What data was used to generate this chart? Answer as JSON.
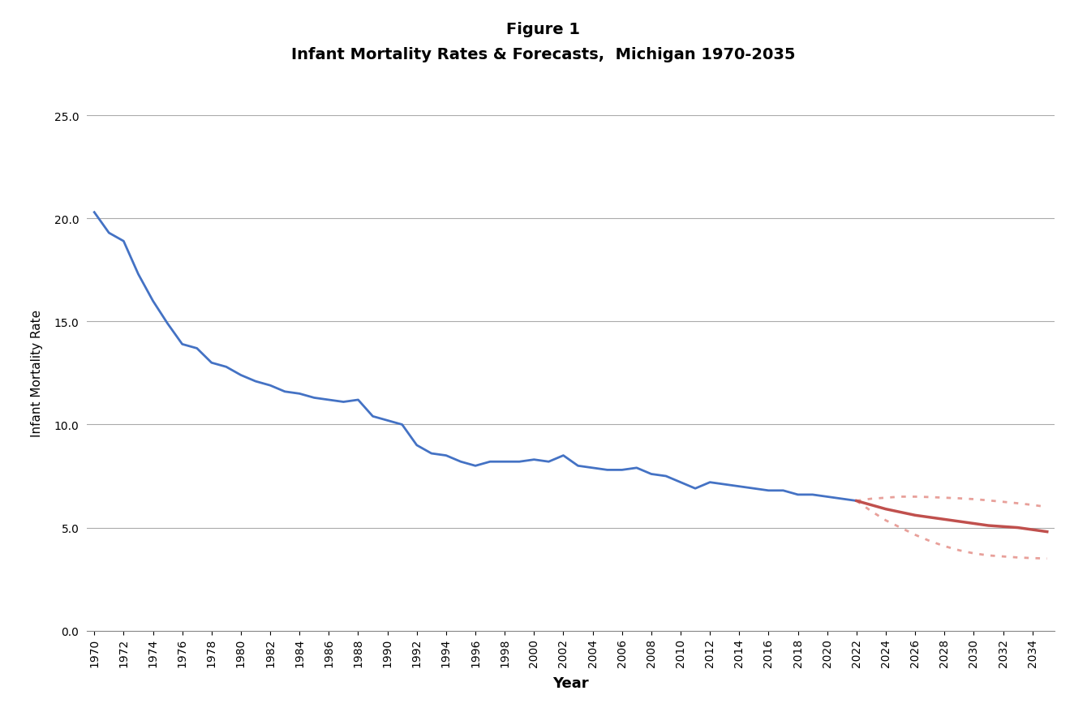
{
  "title_line1": "Figure 1",
  "title_line2": "Infant Mortality Rates & Forecasts,  Michigan 1970-2035",
  "xlabel": "Year",
  "ylabel": "Infant Mortality Rate",
  "ylim": [
    0.0,
    25.0
  ],
  "yticks": [
    0.0,
    5.0,
    10.0,
    15.0,
    20.0,
    25.0
  ],
  "historical_years": [
    1970,
    1971,
    1972,
    1973,
    1974,
    1975,
    1976,
    1977,
    1978,
    1979,
    1980,
    1981,
    1982,
    1983,
    1984,
    1985,
    1986,
    1987,
    1988,
    1989,
    1990,
    1991,
    1992,
    1993,
    1994,
    1995,
    1996,
    1997,
    1998,
    1999,
    2000,
    2001,
    2002,
    2003,
    2004,
    2005,
    2006,
    2007,
    2008,
    2009,
    2010,
    2011,
    2012,
    2013,
    2014,
    2015,
    2016,
    2017,
    2018,
    2019,
    2020,
    2021,
    2022
  ],
  "historical_values": [
    20.3,
    19.3,
    18.9,
    17.3,
    16.0,
    14.9,
    13.9,
    13.7,
    13.0,
    12.8,
    12.4,
    12.1,
    11.9,
    11.6,
    11.5,
    11.3,
    11.2,
    11.1,
    11.2,
    10.4,
    10.2,
    10.0,
    9.0,
    8.6,
    8.5,
    8.2,
    8.0,
    8.2,
    8.2,
    8.2,
    8.3,
    8.2,
    8.5,
    8.0,
    7.9,
    7.8,
    7.8,
    7.9,
    7.6,
    7.5,
    7.2,
    6.9,
    7.2,
    7.1,
    7.0,
    6.9,
    6.8,
    6.8,
    6.6,
    6.6,
    6.5,
    6.4,
    6.3
  ],
  "forecast_years": [
    2022,
    2023,
    2024,
    2025,
    2026,
    2027,
    2028,
    2029,
    2030,
    2031,
    2032,
    2033,
    2034,
    2035
  ],
  "forecast_center": [
    6.3,
    6.1,
    5.9,
    5.75,
    5.6,
    5.5,
    5.4,
    5.3,
    5.2,
    5.1,
    5.05,
    5.0,
    4.9,
    4.8
  ],
  "forecast_upper": [
    6.3,
    6.4,
    6.45,
    6.5,
    6.5,
    6.48,
    6.45,
    6.42,
    6.38,
    6.32,
    6.25,
    6.18,
    6.1,
    6.0
  ],
  "forecast_lower": [
    6.3,
    5.8,
    5.35,
    5.0,
    4.65,
    4.35,
    4.1,
    3.9,
    3.75,
    3.65,
    3.6,
    3.55,
    3.52,
    3.5
  ],
  "hist_color": "#4472C4",
  "forecast_color": "#C0504D",
  "forecast_ci_color": "#E8A09A",
  "xtick_years": [
    1970,
    1972,
    1974,
    1976,
    1978,
    1980,
    1982,
    1984,
    1986,
    1988,
    1990,
    1992,
    1994,
    1996,
    1998,
    2000,
    2002,
    2004,
    2006,
    2008,
    2010,
    2012,
    2014,
    2016,
    2018,
    2020,
    2022,
    2024,
    2026,
    2028,
    2030,
    2032,
    2034
  ],
  "background_color": "#FFFFFF",
  "grid_color": "#AAAAAA"
}
